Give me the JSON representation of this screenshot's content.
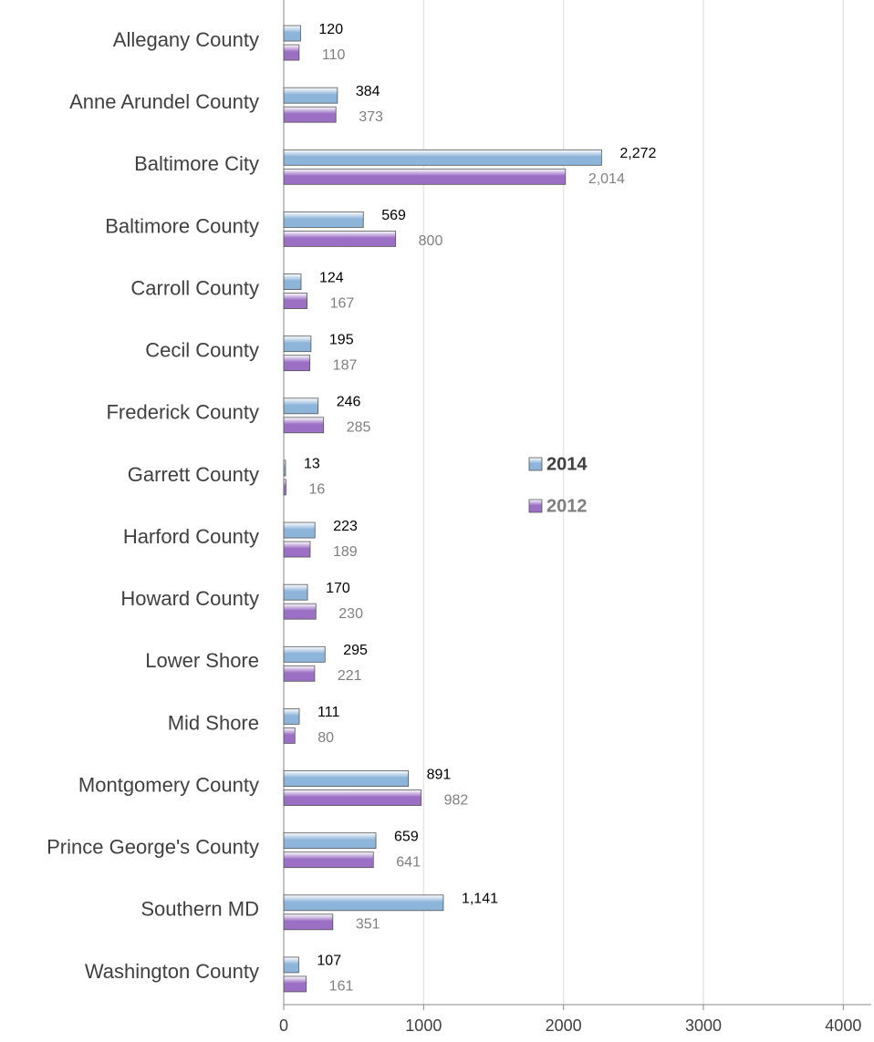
{
  "chart_data": {
    "type": "hbar",
    "categories": [
      "Allegany County",
      "Anne Arundel County",
      "Baltimore City",
      "Baltimore County",
      "Carroll County",
      "Cecil County",
      "Frederick County",
      "Garrett County",
      "Harford County",
      "Howard County",
      "Lower Shore",
      "Mid Shore",
      "Montgomery County",
      "Prince George's County",
      "Southern MD",
      "Washington County"
    ],
    "series": [
      {
        "name": "2014",
        "color": "#8db4d9",
        "label_color": "#000000",
        "values": [
          120,
          384,
          2272,
          569,
          124,
          195,
          246,
          13,
          223,
          170,
          295,
          111,
          891,
          659,
          1141,
          107
        ],
        "value_labels": [
          "120",
          "384",
          "2,272",
          "569",
          "124",
          "195",
          "246",
          "13",
          "223",
          "170",
          "295",
          "111",
          "891",
          "659",
          "1,141",
          "107"
        ]
      },
      {
        "name": "2012",
        "color": "#9b6fc4",
        "label_color": "#7f7f7f",
        "values": [
          110,
          373,
          2014,
          800,
          167,
          187,
          285,
          16,
          189,
          230,
          221,
          80,
          982,
          641,
          351,
          161
        ],
        "value_labels": [
          "110",
          "373",
          "2,014",
          "800",
          "167",
          "187",
          "285",
          "16",
          "189",
          "230",
          "221",
          "80",
          "982",
          "641",
          "351",
          "161"
        ]
      }
    ],
    "xlim": [
      0,
      4200
    ],
    "xticks": [
      0,
      1000,
      2000,
      3000,
      4000
    ],
    "grid": true,
    "legend": "center"
  }
}
